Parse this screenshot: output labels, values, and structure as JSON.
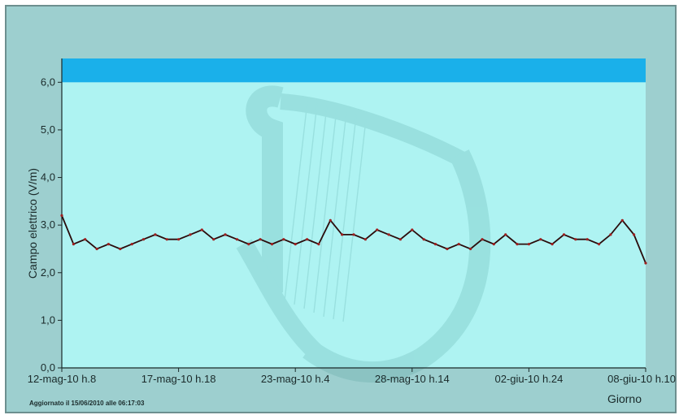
{
  "chart_data": {
    "type": "line",
    "ylabel": "Campo elettrico (V/m)",
    "xlabel": "Giorno",
    "ylim": [
      0,
      6.5
    ],
    "threshold_band": {
      "from": 6.0,
      "to": 6.5,
      "color": "#1ab0ea"
    },
    "plot_background": "#aef3f2",
    "series_color": "#2a0c0c",
    "y_ticks": [
      "0,0",
      "1,0",
      "2,0",
      "3,0",
      "4,0",
      "5,0",
      "6,0"
    ],
    "y_tick_values": [
      0,
      1,
      2,
      3,
      4,
      5,
      6
    ],
    "x_ticks": [
      "12-mag-10 h.8",
      "17-mag-10 h.18",
      "23-mag-10 h.4",
      "28-mag-10 h.14",
      "02-giu-10 h.24",
      "08-giu-10 h.10"
    ],
    "x_tick_values": [
      0,
      1,
      2,
      3,
      4,
      5
    ],
    "xlim": [
      0,
      5
    ],
    "series": [
      {
        "x": [
          0,
          0.1,
          0.2,
          0.3,
          0.4,
          0.5,
          0.6,
          0.7,
          0.8,
          0.9,
          1.0,
          1.1,
          1.2,
          1.3,
          1.4,
          1.5,
          1.6,
          1.7,
          1.8,
          1.9,
          2.0,
          2.1,
          2.2,
          2.3,
          2.4,
          2.5,
          2.6,
          2.7,
          2.8,
          2.9,
          3.0,
          3.1,
          3.2,
          3.3,
          3.4,
          3.5,
          3.6,
          3.7,
          3.8,
          3.9,
          4.0,
          4.1,
          4.2,
          4.3,
          4.4,
          4.5,
          4.6,
          4.7,
          4.8,
          4.9,
          5.0
        ],
        "values": [
          3.2,
          2.6,
          2.7,
          2.5,
          2.6,
          2.5,
          2.6,
          2.7,
          2.8,
          2.7,
          2.7,
          2.8,
          2.9,
          2.7,
          2.8,
          2.7,
          2.6,
          2.7,
          2.6,
          2.7,
          2.6,
          2.7,
          2.6,
          3.1,
          2.8,
          2.8,
          2.7,
          2.9,
          2.8,
          2.7,
          2.9,
          2.7,
          2.6,
          2.5,
          2.6,
          2.5,
          2.7,
          2.6,
          2.8,
          2.6,
          2.6,
          2.7,
          2.6,
          2.8,
          2.7,
          2.7,
          2.6,
          2.8,
          3.1,
          2.8,
          2.2
        ]
      }
    ]
  },
  "footer": {
    "updated_text": "Aggiornato il 15/06/2010 alle 06:17:03"
  }
}
